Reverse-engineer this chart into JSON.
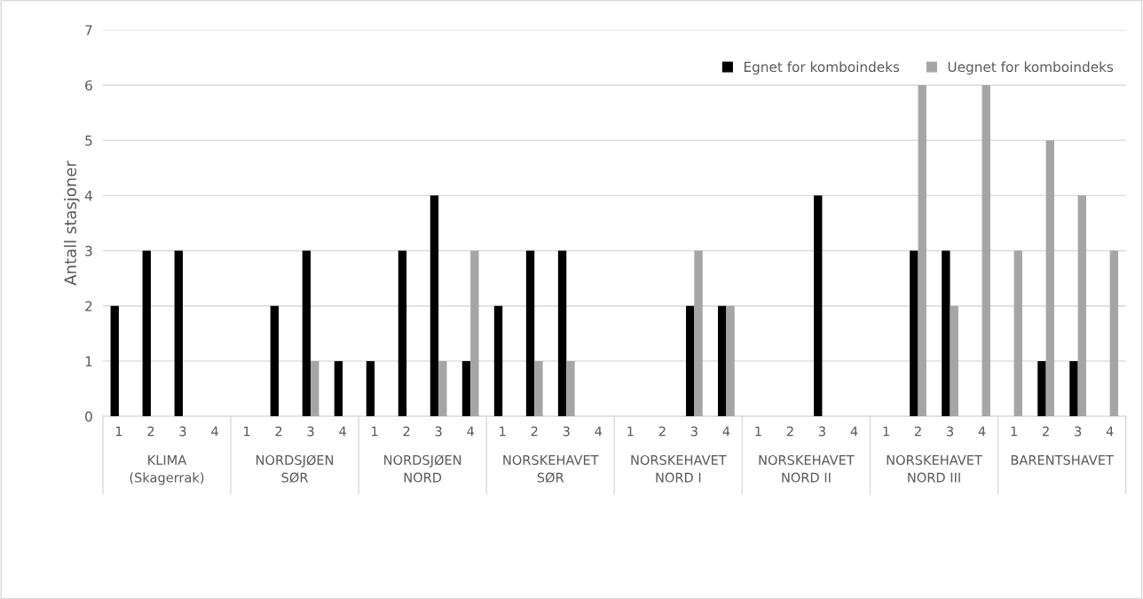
{
  "chart_data": {
    "type": "bar",
    "ylabel": "Antall stasjoner",
    "categories": [
      "1",
      "2",
      "3",
      "4",
      "1",
      "2",
      "3",
      "4",
      "1",
      "2",
      "3",
      "4",
      "1",
      "2",
      "3",
      "4",
      "1",
      "2",
      "3",
      "4",
      "1",
      "2",
      "3",
      "4",
      "1",
      "2",
      "3",
      "4",
      "1",
      "2",
      "3",
      "4"
    ],
    "series": [
      {
        "name": "Egnet for komboindeks",
        "color": "#000000",
        "values": [
          2,
          3,
          3,
          0,
          0,
          2,
          3,
          1,
          1,
          3,
          4,
          1,
          2,
          3,
          3,
          0,
          0,
          0,
          2,
          2,
          0,
          0,
          4,
          0,
          0,
          3,
          3,
          0,
          0,
          1,
          1,
          0
        ]
      },
      {
        "name": "Uegnet for komboindeks",
        "color": "#a5a5a5",
        "values": [
          0,
          0,
          0,
          0,
          0,
          0,
          1,
          0,
          0,
          0,
          1,
          3,
          0,
          1,
          1,
          0,
          0,
          0,
          3,
          2,
          0,
          0,
          0,
          0,
          0,
          6,
          2,
          6,
          3,
          5,
          4,
          3
        ]
      }
    ],
    "ylim": [
      0,
      7
    ],
    "yticks": [
      0,
      1,
      2,
      3,
      4,
      5,
      6,
      7
    ],
    "grid": "y",
    "legend": "top right",
    "annotations": [
      "KLIMA\n(Skagerrak)",
      "NORDSJØEN\nSØR",
      "NORDSJØEN\nNORD",
      "NORSKEHAVET\nSØR",
      "NORSKEHAVET\nNORD I",
      "NORSKEHAVET\nNORD II",
      "NORSKEHAVET\nNORD III",
      "BARENTSHAVET"
    ]
  }
}
